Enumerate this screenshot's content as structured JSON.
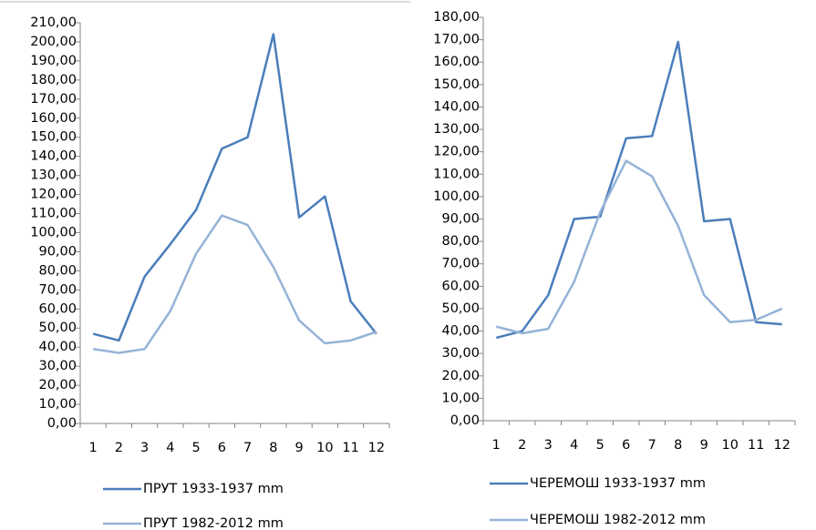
{
  "chart_data": [
    {
      "type": "line",
      "categories": [
        "1",
        "2",
        "3",
        "4",
        "5",
        "6",
        "7",
        "8",
        "9",
        "10",
        "11",
        "12"
      ],
      "series": [
        {
          "name": "ПРУТ 1933-1937 mm",
          "color": "#4a7ebb",
          "values": [
            47,
            43.5,
            77,
            94,
            112,
            144,
            150,
            204,
            108,
            119,
            64,
            47
          ]
        },
        {
          "name": "ПРУТ 1982-2012 mm",
          "color": "#95b3d7",
          "values": [
            39,
            37,
            39,
            59,
            89,
            109,
            104,
            82,
            54,
            42,
            43.5,
            48
          ]
        }
      ],
      "ylim": [
        0,
        210
      ],
      "grid": false,
      "yticks": [
        {
          "value": 0,
          "label": "0,00"
        },
        {
          "value": 10,
          "label": "10,00"
        },
        {
          "value": 20,
          "label": "20,00"
        },
        {
          "value": 30,
          "label": "30,00"
        },
        {
          "value": 40,
          "label": "40,00"
        },
        {
          "value": 50,
          "label": "50,00"
        },
        {
          "value": 60,
          "label": "60,00"
        },
        {
          "value": 70,
          "label": "70,00"
        },
        {
          "value": 80,
          "label": "80,00"
        },
        {
          "value": 90,
          "label": "90,00"
        },
        {
          "value": 100,
          "label": "100,00"
        },
        {
          "value": 110,
          "label": "110,00"
        },
        {
          "value": 120,
          "label": "120,00"
        },
        {
          "value": 130,
          "label": "130,00"
        },
        {
          "value": 140,
          "label": "140,00"
        },
        {
          "value": 150,
          "label": "150,00"
        },
        {
          "value": 160,
          "label": "160,00"
        },
        {
          "value": 170,
          "label": "170,00"
        },
        {
          "value": 180,
          "label": "180,00"
        },
        {
          "value": 190,
          "label": "190,00"
        },
        {
          "value": 200,
          "label": "200,00"
        },
        {
          "value": 210,
          "label": "210,00"
        }
      ]
    },
    {
      "type": "line",
      "categories": [
        "1",
        "2",
        "3",
        "4",
        "5",
        "6",
        "7",
        "8",
        "9",
        "10",
        "11",
        "12"
      ],
      "series": [
        {
          "name": "ЧЕРЕМОШ 1933-1937 mm",
          "color": "#4a7ebb",
          "values": [
            37,
            40,
            56,
            90,
            91,
            126,
            127,
            169,
            89,
            90,
            44,
            43
          ]
        },
        {
          "name": "ЧЕРЕМОШ 1982-2012 mm",
          "color": "#95b3d7",
          "values": [
            42,
            39,
            41,
            62,
            93,
            116,
            109,
            87,
            56,
            44,
            45,
            50
          ]
        }
      ],
      "ylim": [
        0,
        180
      ],
      "grid": false,
      "yticks": [
        {
          "value": 0,
          "label": "0,00"
        },
        {
          "value": 10,
          "label": "10,00"
        },
        {
          "value": 20,
          "label": "20,00"
        },
        {
          "value": 30,
          "label": "30,00"
        },
        {
          "value": 40,
          "label": "40,00"
        },
        {
          "value": 50,
          "label": "50,00"
        },
        {
          "value": 60,
          "label": "60,00"
        },
        {
          "value": 70,
          "label": "70,00"
        },
        {
          "value": 80,
          "label": "80,00"
        },
        {
          "value": 90,
          "label": "90,00"
        },
        {
          "value": 100,
          "label": "100,00"
        },
        {
          "value": 110,
          "label": "110,00"
        },
        {
          "value": 120,
          "label": "120,00"
        },
        {
          "value": 130,
          "label": "130,00"
        },
        {
          "value": 140,
          "label": "140,00"
        },
        {
          "value": 150,
          "label": "150,00"
        },
        {
          "value": 160,
          "label": "160,00"
        },
        {
          "value": 170,
          "label": "170,00"
        },
        {
          "value": 180,
          "label": "180,00"
        }
      ]
    }
  ]
}
